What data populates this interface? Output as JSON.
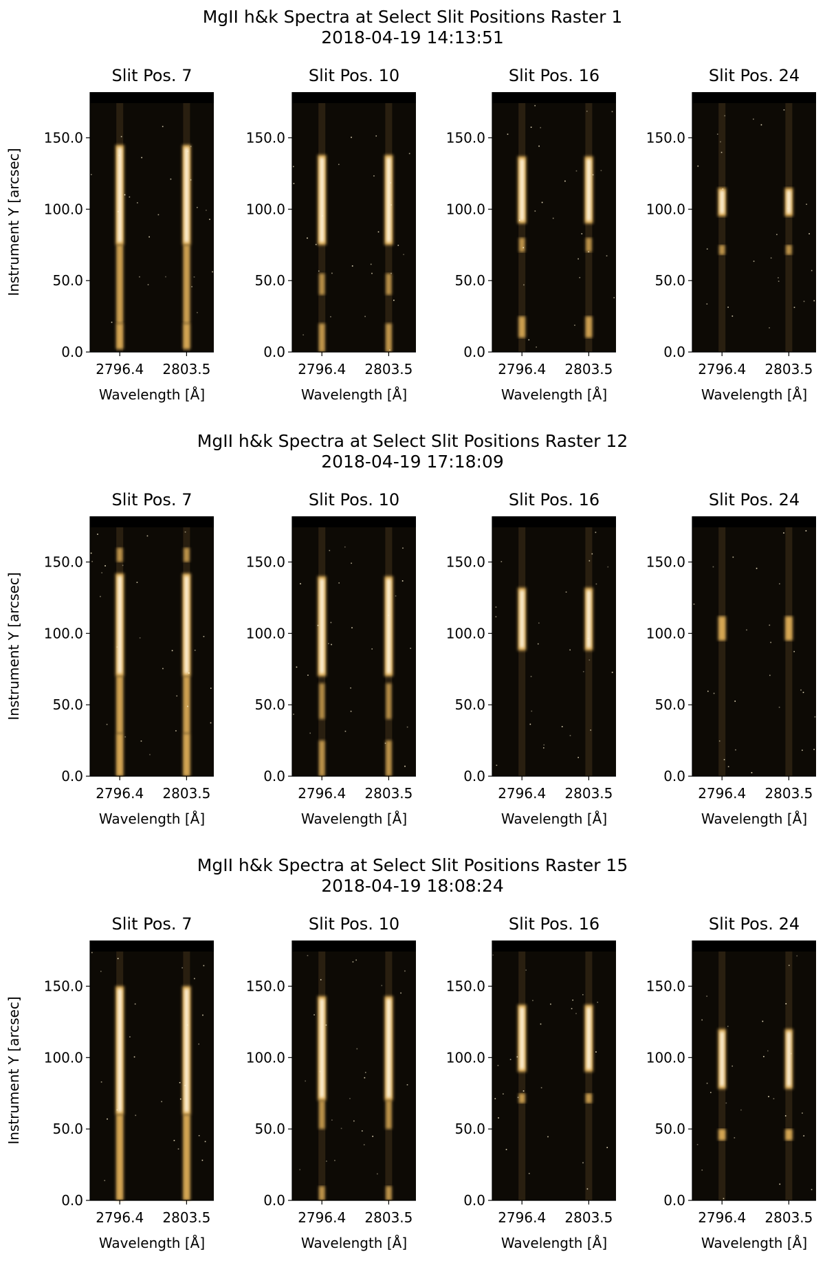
{
  "figure": {
    "colormap": "irissji2796 (black → gold → white)",
    "colors": {
      "background": "#0d0a05",
      "emission": "#f5c060",
      "peak": "#fff8e6",
      "saturated_band": "#000000"
    }
  },
  "chart_data": [
    {
      "type": "heatmap",
      "title": "MgII h&k Spectra at Select Slit Positions Raster 1",
      "subtitle": "2018-04-19 14:13:51",
      "ylabel": "Instrument Y [arcsec]",
      "xlabel": "Wavelength [Å]",
      "xticks": [
        "2796.4",
        "2803.5"
      ],
      "yticks": [
        "0.0",
        "50.0",
        "100.0",
        "150.0"
      ],
      "ylim": [
        0,
        182
      ],
      "panels": [
        {
          "title": "Slit Pos. 7",
          "bright_segments": [
            [
              2,
              20,
              0.8
            ],
            [
              20,
              75,
              0.7
            ],
            [
              75,
              145,
              1.0
            ]
          ]
        },
        {
          "title": "Slit Pos. 10",
          "bright_segments": [
            [
              0,
              20,
              0.55
            ],
            [
              40,
              55,
              0.45
            ],
            [
              75,
              138,
              1.0
            ]
          ]
        },
        {
          "title": "Slit Pos. 16",
          "bright_segments": [
            [
              10,
              25,
              0.7
            ],
            [
              70,
              80,
              0.5
            ],
            [
              90,
              137,
              1.0
            ]
          ]
        },
        {
          "title": "Slit Pos. 24",
          "bright_segments": [
            [
              68,
              75,
              0.5
            ],
            [
              95,
              115,
              0.95
            ]
          ]
        }
      ]
    },
    {
      "type": "heatmap",
      "title": "MgII h&k Spectra at Select Slit Positions Raster 12",
      "subtitle": "2018-04-19 17:18:09",
      "ylabel": "Instrument Y [arcsec]",
      "xlabel": "Wavelength [Å]",
      "xticks": [
        "2796.4",
        "2803.5"
      ],
      "yticks": [
        "0.0",
        "50.0",
        "100.0",
        "150.0"
      ],
      "ylim": [
        0,
        182
      ],
      "panels": [
        {
          "title": "Slit Pos. 7",
          "bright_segments": [
            [
              0,
              30,
              0.8
            ],
            [
              30,
              70,
              0.75
            ],
            [
              70,
              142,
              1.0
            ],
            [
              150,
              160,
              0.5
            ]
          ]
        },
        {
          "title": "Slit Pos. 10",
          "bright_segments": [
            [
              0,
              25,
              0.5
            ],
            [
              40,
              65,
              0.4
            ],
            [
              70,
              140,
              1.0
            ]
          ]
        },
        {
          "title": "Slit Pos. 16",
          "bright_segments": [
            [
              88,
              132,
              0.95
            ]
          ]
        },
        {
          "title": "Slit Pos. 24",
          "bright_segments": [
            [
              95,
              112,
              0.85
            ]
          ]
        }
      ]
    },
    {
      "type": "heatmap",
      "title": "MgII h&k Spectra at Select Slit Positions Raster 15",
      "subtitle": "2018-04-19 18:08:24",
      "ylabel": "Instrument Y [arcsec]",
      "xlabel": "Wavelength [Å]",
      "xticks": [
        "2796.4",
        "2803.5"
      ],
      "yticks": [
        "0.0",
        "50.0",
        "100.0",
        "150.0"
      ],
      "ylim": [
        0,
        182
      ],
      "panels": [
        {
          "title": "Slit Pos. 7",
          "bright_segments": [
            [
              0,
              60,
              0.8
            ],
            [
              60,
              150,
              1.0
            ]
          ]
        },
        {
          "title": "Slit Pos. 10",
          "bright_segments": [
            [
              0,
              10,
              0.5
            ],
            [
              50,
              70,
              0.5
            ],
            [
              70,
              143,
              1.0
            ]
          ]
        },
        {
          "title": "Slit Pos. 16",
          "bright_segments": [
            [
              68,
              75,
              0.6
            ],
            [
              90,
              137,
              1.0
            ]
          ]
        },
        {
          "title": "Slit Pos. 24",
          "bright_segments": [
            [
              42,
              50,
              0.8
            ],
            [
              78,
              120,
              0.9
            ]
          ]
        }
      ]
    }
  ]
}
